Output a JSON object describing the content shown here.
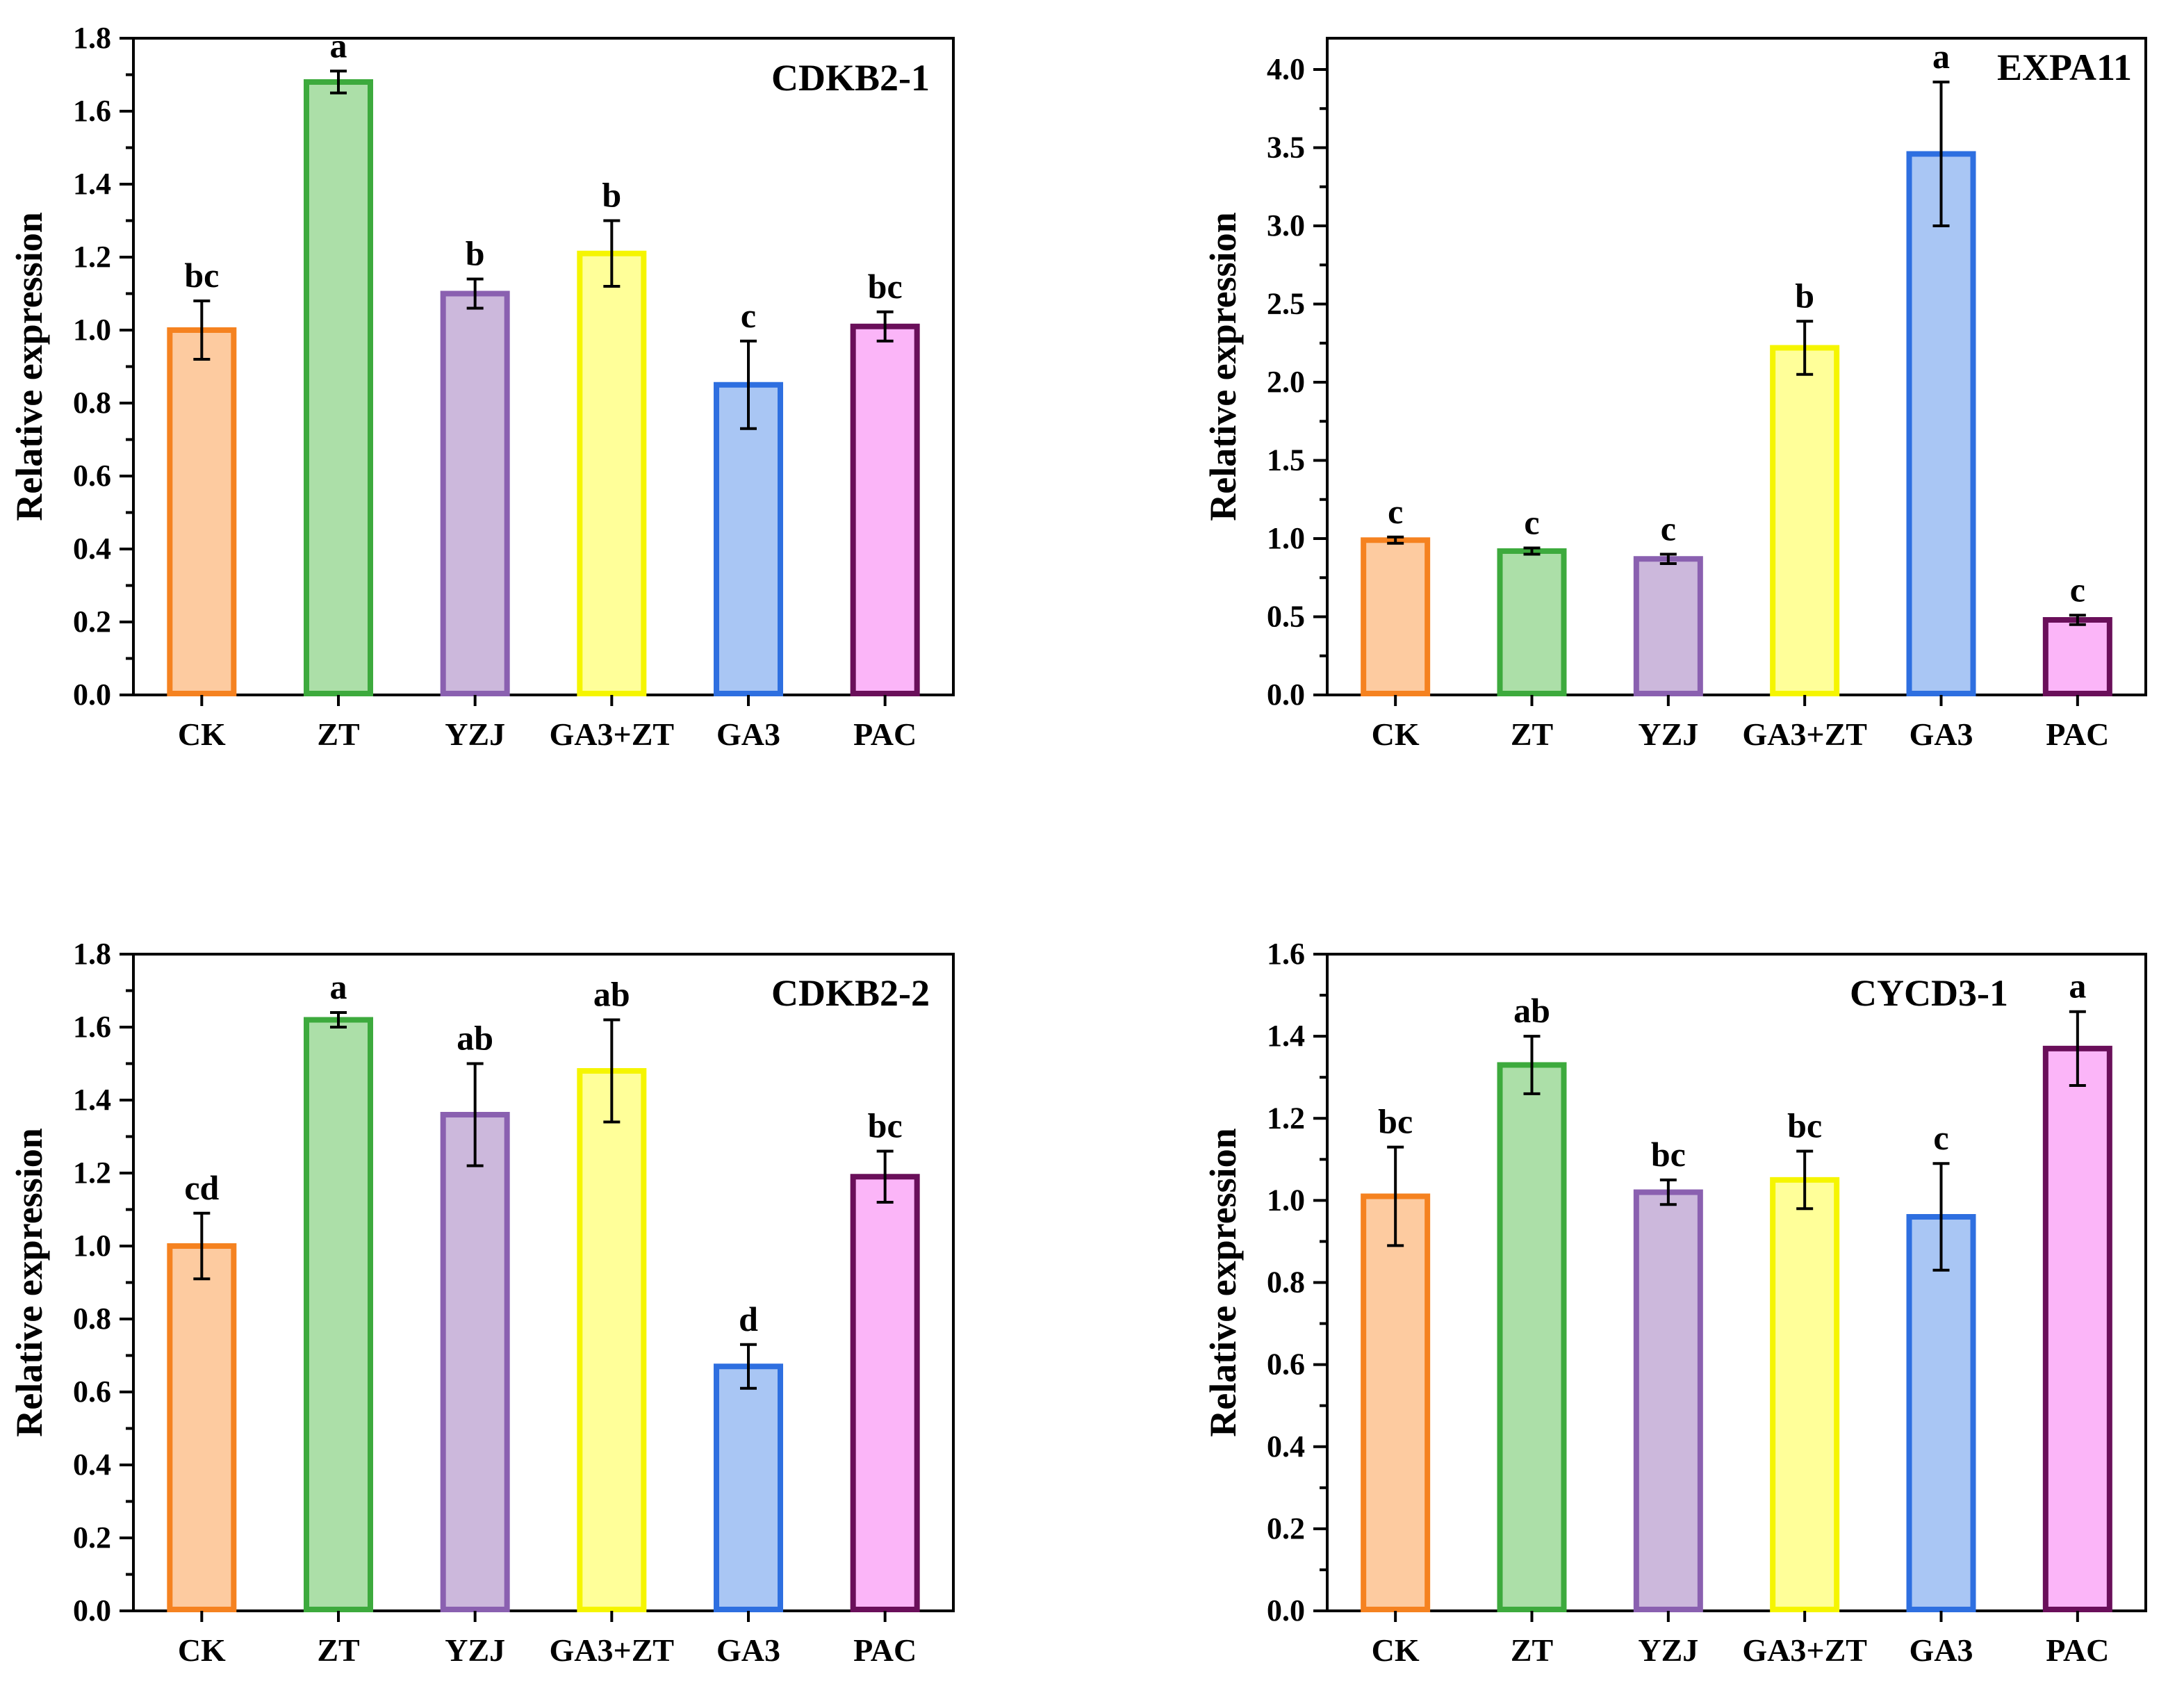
{
  "chart_data": [
    {
      "type": "bar",
      "title": "CDKB2-1",
      "xlabel": "",
      "ylabel": "Relative expression",
      "ylim": [
        0,
        1.8
      ],
      "yticks": [
        "0.0",
        "0.2",
        "0.4",
        "0.6",
        "0.8",
        "1.0",
        "1.2",
        "1.4",
        "1.6",
        "1.8"
      ],
      "categories": [
        "CK",
        "ZT",
        "YZJ",
        "GA3+ZT",
        "GA3",
        "PAC"
      ],
      "values": [
        1.0,
        1.68,
        1.1,
        1.21,
        0.85,
        1.01
      ],
      "errors": [
        0.08,
        0.03,
        0.04,
        0.09,
        0.12,
        0.04
      ],
      "significance": [
        "bc",
        "a",
        "b",
        "b",
        "c",
        "bc"
      ]
    },
    {
      "type": "bar",
      "title": "EXPA11",
      "xlabel": "",
      "ylabel": "Relative expression",
      "ylim": [
        0,
        4.2
      ],
      "yticks": [
        "0.0",
        "0.5",
        "1.0",
        "1.5",
        "2.0",
        "2.5",
        "3.0",
        "3.5",
        "4.0"
      ],
      "categories": [
        "CK",
        "ZT",
        "YZJ",
        "GA3+ZT",
        "GA3",
        "PAC"
      ],
      "values": [
        0.99,
        0.92,
        0.87,
        2.22,
        3.46,
        0.48
      ],
      "errors": [
        0.02,
        0.02,
        0.03,
        0.17,
        0.46,
        0.03
      ],
      "significance": [
        "c",
        "c",
        "c",
        "b",
        "a",
        "c"
      ]
    },
    {
      "type": "bar",
      "title": "CDKB2-2",
      "xlabel": "",
      "ylabel": "Relative expression",
      "ylim": [
        0,
        1.8
      ],
      "yticks": [
        "0.0",
        "0.2",
        "0.4",
        "0.6",
        "0.8",
        "1.0",
        "1.2",
        "1.4",
        "1.6",
        "1.8"
      ],
      "categories": [
        "CK",
        "ZT",
        "YZJ",
        "GA3+ZT",
        "GA3",
        "PAC"
      ],
      "values": [
        1.0,
        1.62,
        1.36,
        1.48,
        0.67,
        1.19
      ],
      "errors": [
        0.09,
        0.02,
        0.14,
        0.14,
        0.06,
        0.07
      ],
      "significance": [
        "cd",
        "a",
        "ab",
        "ab",
        "d",
        "bc"
      ]
    },
    {
      "type": "bar",
      "title": "CYCD3-1",
      "xlabel": "",
      "ylabel": "Relative expression",
      "ylim": [
        0,
        1.6
      ],
      "yticks": [
        "0.0",
        "0.2",
        "0.4",
        "0.6",
        "0.8",
        "1.0",
        "1.2",
        "1.4",
        "1.6"
      ],
      "categories": [
        "CK",
        "ZT",
        "YZJ",
        "GA3+ZT",
        "GA3",
        "PAC"
      ],
      "values": [
        1.01,
        1.33,
        1.02,
        1.05,
        0.96,
        1.37
      ],
      "errors": [
        0.12,
        0.07,
        0.03,
        0.07,
        0.13,
        0.09
      ],
      "significance": [
        "bc",
        "ab",
        "bc",
        "bc",
        "c",
        "a"
      ]
    }
  ],
  "colors": {
    "fills": [
      "#FDCBA0",
      "#ACDFA8",
      "#CCB8DC",
      "#FFFF99",
      "#A9C6F4",
      "#FBB5F8"
    ],
    "borders": [
      "#F58220",
      "#3DAA3D",
      "#8A60B0",
      "#F5F500",
      "#2E6FE0",
      "#6A0F5A"
    ],
    "axis": "#000000"
  }
}
